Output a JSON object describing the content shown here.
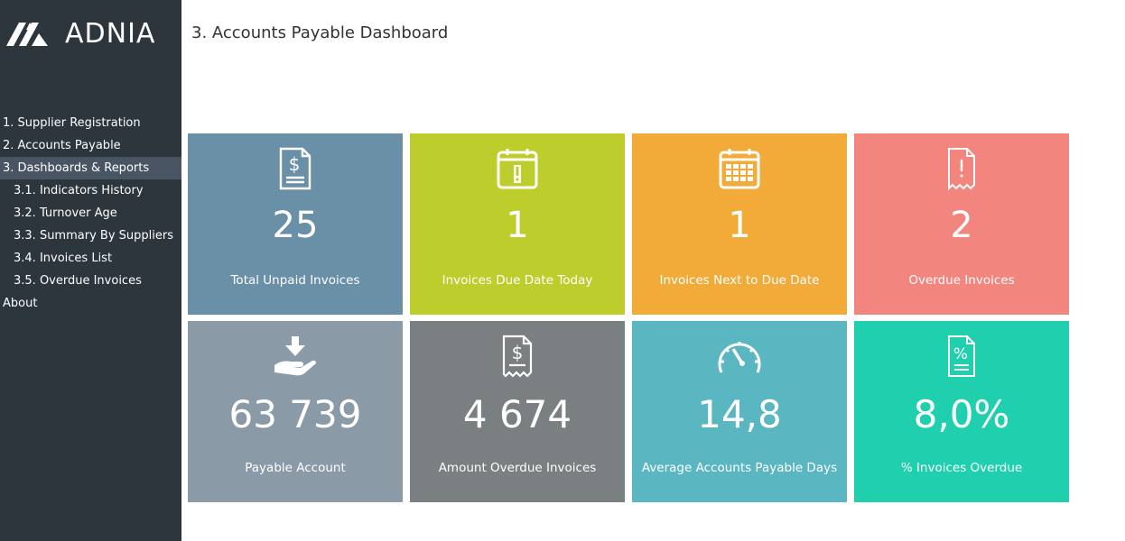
{
  "brand": {
    "name": "ADNIA"
  },
  "page": {
    "title": "3. Accounts Payable Dashboard"
  },
  "nav": {
    "items": [
      {
        "label": "1. Supplier Registration"
      },
      {
        "label": "2. Accounts Payable"
      },
      {
        "label": "3. Dashboards & Reports"
      },
      {
        "label": "3.1. Indicators History"
      },
      {
        "label": "3.2. Turnover Age"
      },
      {
        "label": "3.3. Summary By Suppliers"
      },
      {
        "label": "3.4. Invoices List"
      },
      {
        "label": "3.5. Overdue Invoices"
      },
      {
        "label": "About"
      }
    ]
  },
  "tiles": [
    {
      "value": "25",
      "label": "Total Unpaid Invoices",
      "icon": "dollar-document-icon",
      "color": "#6990a6"
    },
    {
      "value": "1",
      "label": "Invoices Due Date Today",
      "icon": "calendar-alert-icon",
      "color": "#bccd2c"
    },
    {
      "value": "1",
      "label": "Invoices Next to Due Date",
      "icon": "calendar-grid-icon",
      "color": "#f2aa39"
    },
    {
      "value": "2",
      "label": "Overdue Invoices",
      "icon": "receipt-alert-icon",
      "color": "#f2857e"
    },
    {
      "value": "63 739",
      "label": "Payable Account",
      "icon": "hand-receive-icon",
      "color": "#8a9aa7"
    },
    {
      "value": "4 674",
      "label": "Amount Overdue Invoices",
      "icon": "dollar-receipt-icon",
      "color": "#7a7f81"
    },
    {
      "value": "14,8",
      "label": "Average Accounts Payable Days",
      "icon": "speedometer-icon",
      "color": "#5ab6c0"
    },
    {
      "value": "8,0%",
      "label": "% Invoices Overdue",
      "icon": "percent-document-icon",
      "color": "#1fcfae"
    }
  ],
  "colors": {
    "sidebar": "#2d353d",
    "nav_active": "#4a5563"
  }
}
